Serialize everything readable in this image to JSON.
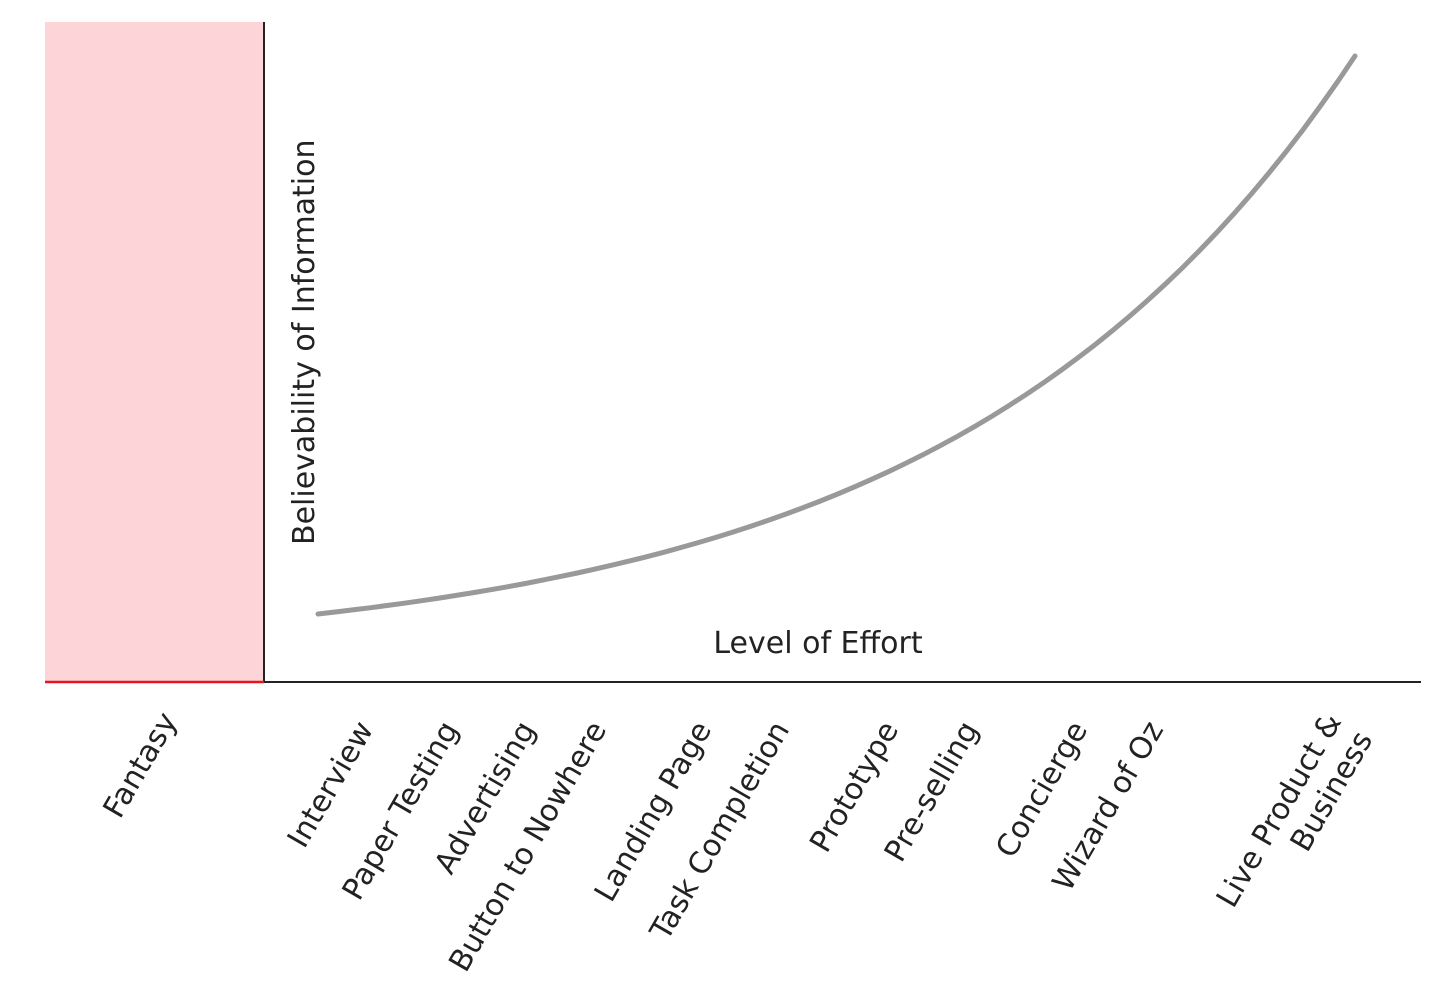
{
  "chart_data": {
    "type": "line",
    "title": "",
    "xlabel": "Level of Effort",
    "ylabel": "Believability of Information",
    "grid": false,
    "legend": "none",
    "region": {
      "label": "Fantasy",
      "fill_color": "#fdd5d8",
      "label_color": "#e8141c"
    },
    "categories": [
      [
        "Interview"
      ],
      [
        "Paper Testing"
      ],
      [
        "Advertising"
      ],
      [
        "Button to Nowhere"
      ],
      [
        "Landing Page"
      ],
      [
        "Task Completion"
      ],
      [
        "Prototype"
      ],
      [
        "Pre-selling"
      ],
      [
        "Concierge"
      ],
      [
        "Wizard of Oz"
      ],
      [
        "Live Product &",
        "Business"
      ]
    ],
    "curve": {
      "color": "#999999",
      "shape": "exponential-growth",
      "x_range": [
        0,
        1
      ],
      "y_range": [
        0,
        1
      ],
      "points": [
        [
          0.0,
          0.08
        ],
        [
          1.0,
          1.0
        ]
      ]
    }
  }
}
